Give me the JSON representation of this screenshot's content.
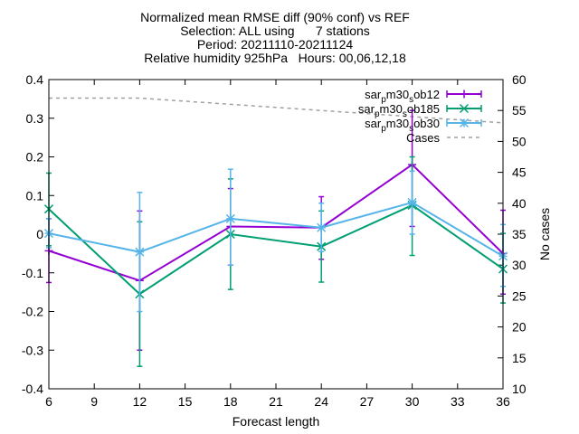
{
  "chart_data": {
    "type": "line",
    "title_lines": [
      "Normalized mean RMSE diff (90% conf) vs REF",
      "Selection: ALL using      7 stations",
      "Period: 20211110-20211124",
      "Relative humidity 925hPa   Hours: 00,06,12,18"
    ],
    "xlabel": "Forecast length",
    "ylabel_left": "",
    "ylabel_right": "No cases",
    "xlim": [
      6,
      36
    ],
    "ylim_left": [
      -0.4,
      0.4
    ],
    "ylim_right": [
      10,
      60
    ],
    "x_ticks": [
      6,
      9,
      12,
      15,
      18,
      21,
      24,
      27,
      30,
      33,
      36
    ],
    "y_ticks_left": [
      -0.4,
      -0.3,
      -0.2,
      -0.1,
      0,
      0.1,
      0.2,
      0.3,
      0.4
    ],
    "y_ticks_left_labels": [
      "-0.4",
      "-0.3",
      "-0.2",
      "-0.1",
      "0",
      "0.1",
      "0.2",
      "0.3",
      "0.4"
    ],
    "y_ticks_right": [
      10,
      15,
      20,
      25,
      30,
      35,
      40,
      45,
      50,
      55,
      60
    ],
    "legend_position": "top-right",
    "x": [
      6,
      12,
      18,
      24,
      30,
      36
    ],
    "series": [
      {
        "name": "sar_pm30_sob12",
        "label_parts": [
          "sar",
          "p",
          "m30",
          "s",
          "ob12"
        ],
        "color": "#9400d3",
        "marker": "plus",
        "axis": "left",
        "values": [
          -0.043,
          -0.12,
          0.02,
          0.017,
          0.18,
          -0.05
        ],
        "err_low": [
          -0.125,
          -0.3,
          -0.08,
          -0.065,
          0.02,
          -0.155
        ],
        "err_high": [
          0.04,
          0.06,
          0.118,
          0.097,
          0.32,
          0.062
        ]
      },
      {
        "name": "sar_pm30_sob185",
        "label_parts": [
          "sar",
          "p",
          "m30",
          "s",
          "ob185"
        ],
        "color": "#009e73",
        "marker": "x",
        "axis": "left",
        "values": [
          0.065,
          -0.155,
          0.0,
          -0.032,
          0.075,
          -0.09
        ],
        "err_low": [
          -0.03,
          -0.342,
          -0.143,
          -0.124,
          -0.055,
          -0.178
        ],
        "err_high": [
          0.158,
          0.032,
          0.143,
          0.06,
          0.2,
          0.002
        ]
      },
      {
        "name": "sar_pm30_sob30",
        "label_parts": [
          "sar",
          "p",
          "m30",
          "s",
          "ob30"
        ],
        "color": "#56b4e9",
        "marker": "star",
        "axis": "left",
        "values": [
          0.002,
          -0.046,
          0.04,
          0.017,
          0.082,
          -0.057
        ],
        "err_low": [
          -0.035,
          -0.2,
          -0.08,
          -0.045,
          0.0,
          -0.135
        ],
        "err_high": [
          0.04,
          0.108,
          0.168,
          0.08,
          0.163,
          0.025
        ]
      }
    ],
    "cases": {
      "name": "Cases",
      "color": "#a0a0a0",
      "axis": "right",
      "x": [
        6,
        12,
        18,
        24,
        30,
        36
      ],
      "values": [
        57,
        57,
        56,
        55,
        54,
        53
      ]
    }
  }
}
